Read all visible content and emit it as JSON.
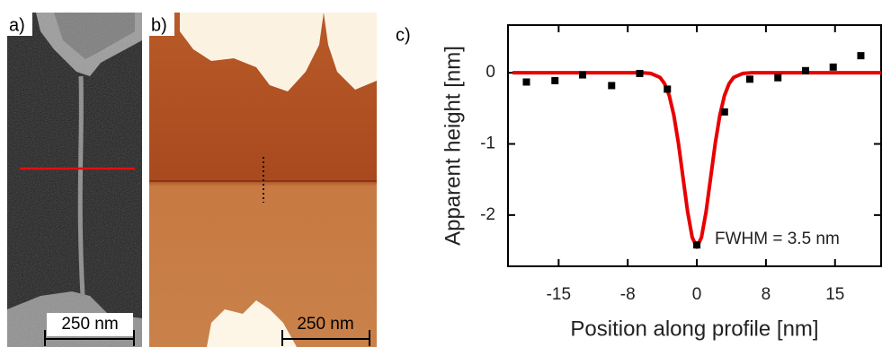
{
  "panels": {
    "a": {
      "label": "a)",
      "scale_bar": "250 nm"
    },
    "b": {
      "label": "b)",
      "scale_bar": "250 nm"
    },
    "c": {
      "label": "c)"
    }
  },
  "chart_data": {
    "type": "scatter",
    "xlabel": "Position along profile [nm]",
    "ylabel": "Apparent height [nm]",
    "annotation": "FWHM = 3.5 nm",
    "xlim": [
      -20.5,
      20
    ],
    "ylim": [
      -2.72,
      0.67
    ],
    "xticks": [
      -15,
      {
        "value": -7.5,
        "label": "-8"
      },
      0,
      {
        "value": 7.5,
        "label": "8"
      },
      15
    ],
    "yticks": [
      0,
      -1,
      -2
    ],
    "grid": false,
    "series": [
      {
        "type": "scatter",
        "color": "#000000",
        "x": [
          -18.5,
          -15.4,
          -12.4,
          -9.25,
          -6.2,
          -3.2,
          0,
          3.0,
          5.75,
          8.8,
          11.8,
          14.8,
          17.8
        ],
        "values": [
          -0.13,
          -0.11,
          -0.03,
          -0.18,
          -0.01,
          -0.23,
          -2.42,
          -0.55,
          -0.09,
          -0.07,
          0.03,
          0.08,
          0.24
        ]
      },
      {
        "type": "line",
        "color": "#e80000",
        "x": [
          -20,
          -10,
          -6,
          -5,
          -4,
          -3.5,
          -3,
          -2.5,
          -2,
          -1.5,
          -1,
          -0.5,
          0,
          0.5,
          1,
          1.5,
          2,
          2.5,
          3,
          3.5,
          4,
          5,
          6,
          10,
          20
        ],
        "values": [
          0,
          0,
          0,
          -0.009,
          -0.065,
          -0.153,
          -0.319,
          -0.595,
          -0.99,
          -1.473,
          -1.954,
          -2.315,
          -2.45,
          -2.315,
          -1.954,
          -1.473,
          -0.99,
          -0.595,
          -0.319,
          -0.153,
          -0.065,
          -0.009,
          0,
          0,
          0
        ]
      }
    ]
  }
}
